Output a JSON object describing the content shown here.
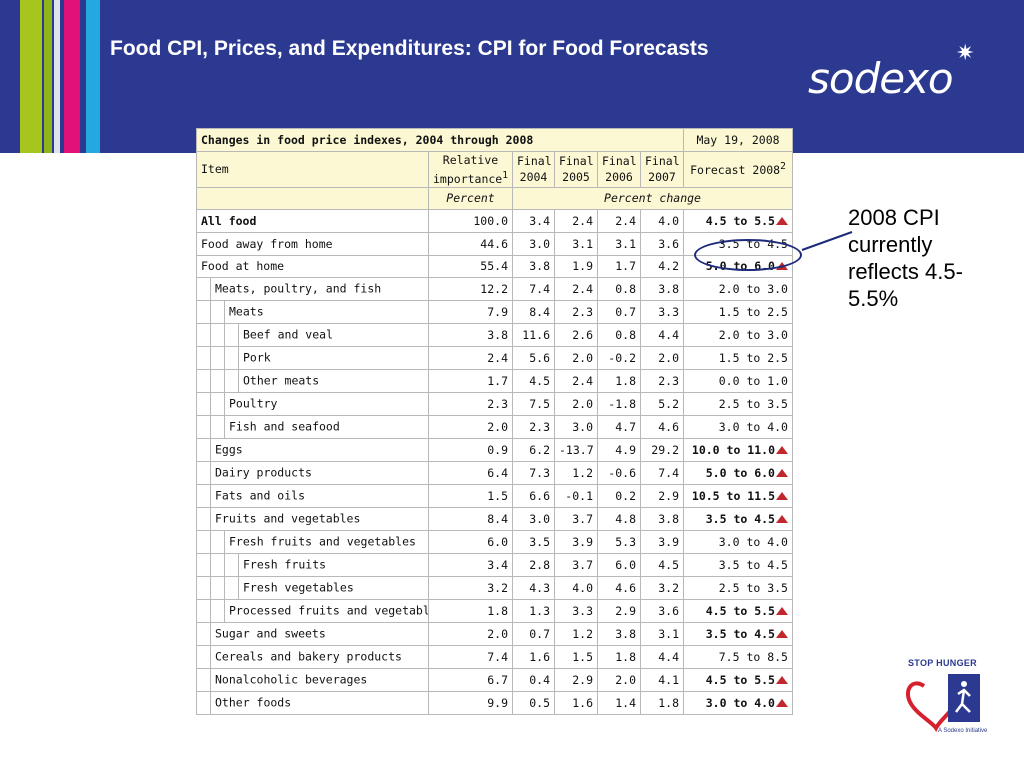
{
  "slide": {
    "title": "Food CPI, Prices, and Expenditures: CPI for Food Forecasts",
    "brand": "sodexo",
    "annotation": "2008 CPI currently reflects 4.5-5.5%",
    "badge_title": "STOP HUNGER",
    "badge_subtitle": "A Sodexo Initiative",
    "colors": {
      "header": "#2b3990",
      "arrow_up": "#c0282d"
    }
  },
  "table": {
    "caption": "Changes in food price indexes, 2004 through 2008",
    "date": "May 19, 2008",
    "headers": {
      "item": "Item",
      "relative": "Relative importance",
      "relative_sup": "1",
      "final2004": "Final 2004",
      "final2005": "Final 2005",
      "final2006": "Final 2006",
      "final2007": "Final 2007",
      "forecast": "Forecast 2008",
      "forecast_sup": "2"
    },
    "units": {
      "relative": "Percent",
      "change": "Percent change"
    },
    "rows": [
      {
        "item": "All food",
        "indent": 0,
        "bold": true,
        "rel": "100.0",
        "y2004": "3.4",
        "y2005": "2.4",
        "y2006": "2.4",
        "y2007": "4.0",
        "forecast": "4.5 to 5.5",
        "up": true
      },
      {
        "item": "Food away from home",
        "indent": 0,
        "bold": false,
        "rel": "44.6",
        "y2004": "3.0",
        "y2005": "3.1",
        "y2006": "3.1",
        "y2007": "3.6",
        "forecast": "3.5 to 4.5",
        "up": false
      },
      {
        "item": "Food at home",
        "indent": 0,
        "bold": false,
        "rel": "55.4",
        "y2004": "3.8",
        "y2005": "1.9",
        "y2006": "1.7",
        "y2007": "4.2",
        "forecast": "5.0 to 6.0",
        "up": true
      },
      {
        "item": "Meats, poultry, and fish",
        "indent": 1,
        "bold": false,
        "rel": "12.2",
        "y2004": "7.4",
        "y2005": "2.4",
        "y2006": "0.8",
        "y2007": "3.8",
        "forecast": "2.0 to 3.0",
        "up": false
      },
      {
        "item": "Meats",
        "indent": 2,
        "bold": false,
        "rel": "7.9",
        "y2004": "8.4",
        "y2005": "2.3",
        "y2006": "0.7",
        "y2007": "3.3",
        "forecast": "1.5 to 2.5",
        "up": false
      },
      {
        "item": "Beef and veal",
        "indent": 3,
        "bold": false,
        "rel": "3.8",
        "y2004": "11.6",
        "y2005": "2.6",
        "y2006": "0.8",
        "y2007": "4.4",
        "forecast": "2.0 to 3.0",
        "up": false
      },
      {
        "item": "Pork",
        "indent": 3,
        "bold": false,
        "rel": "2.4",
        "y2004": "5.6",
        "y2005": "2.0",
        "y2006": "-0.2",
        "y2007": "2.0",
        "forecast": "1.5 to 2.5",
        "up": false
      },
      {
        "item": "Other meats",
        "indent": 3,
        "bold": false,
        "rel": "1.7",
        "y2004": "4.5",
        "y2005": "2.4",
        "y2006": "1.8",
        "y2007": "2.3",
        "forecast": "0.0 to 1.0",
        "up": false
      },
      {
        "item": "Poultry",
        "indent": 2,
        "bold": false,
        "rel": "2.3",
        "y2004": "7.5",
        "y2005": "2.0",
        "y2006": "-1.8",
        "y2007": "5.2",
        "forecast": "2.5 to 3.5",
        "up": false
      },
      {
        "item": "Fish and seafood",
        "indent": 2,
        "bold": false,
        "rel": "2.0",
        "y2004": "2.3",
        "y2005": "3.0",
        "y2006": "4.7",
        "y2007": "4.6",
        "forecast": "3.0 to 4.0",
        "up": false
      },
      {
        "item": "Eggs",
        "indent": 1,
        "bold": false,
        "rel": "0.9",
        "y2004": "6.2",
        "y2005": "-13.7",
        "y2006": "4.9",
        "y2007": "29.2",
        "forecast": "10.0 to 11.0",
        "up": true
      },
      {
        "item": "Dairy products",
        "indent": 1,
        "bold": false,
        "rel": "6.4",
        "y2004": "7.3",
        "y2005": "1.2",
        "y2006": "-0.6",
        "y2007": "7.4",
        "forecast": "5.0 to 6.0",
        "up": true
      },
      {
        "item": "Fats and oils",
        "indent": 1,
        "bold": false,
        "rel": "1.5",
        "y2004": "6.6",
        "y2005": "-0.1",
        "y2006": "0.2",
        "y2007": "2.9",
        "forecast": "10.5 to 11.5",
        "up": true
      },
      {
        "item": "Fruits and vegetables",
        "indent": 1,
        "bold": false,
        "rel": "8.4",
        "y2004": "3.0",
        "y2005": "3.7",
        "y2006": "4.8",
        "y2007": "3.8",
        "forecast": "3.5 to 4.5",
        "up": true
      },
      {
        "item": "Fresh fruits and vegetables",
        "indent": 2,
        "bold": false,
        "rel": "6.0",
        "y2004": "3.5",
        "y2005": "3.9",
        "y2006": "5.3",
        "y2007": "3.9",
        "forecast": "3.0 to 4.0",
        "up": false
      },
      {
        "item": "Fresh fruits",
        "indent": 3,
        "bold": false,
        "rel": "3.4",
        "y2004": "2.8",
        "y2005": "3.7",
        "y2006": "6.0",
        "y2007": "4.5",
        "forecast": "3.5 to 4.5",
        "up": false
      },
      {
        "item": "Fresh vegetables",
        "indent": 3,
        "bold": false,
        "rel": "3.2",
        "y2004": "4.3",
        "y2005": "4.0",
        "y2006": "4.6",
        "y2007": "3.2",
        "forecast": "2.5 to 3.5",
        "up": false
      },
      {
        "item": "Processed fruits and vegetables",
        "indent": 2,
        "bold": false,
        "rel": "1.8",
        "y2004": "1.3",
        "y2005": "3.3",
        "y2006": "2.9",
        "y2007": "3.6",
        "forecast": "4.5 to 5.5",
        "up": true
      },
      {
        "item": "Sugar and sweets",
        "indent": 1,
        "bold": false,
        "rel": "2.0",
        "y2004": "0.7",
        "y2005": "1.2",
        "y2006": "3.8",
        "y2007": "3.1",
        "forecast": "3.5 to 4.5",
        "up": true
      },
      {
        "item": "Cereals and bakery products",
        "indent": 1,
        "bold": false,
        "rel": "7.4",
        "y2004": "1.6",
        "y2005": "1.5",
        "y2006": "1.8",
        "y2007": "4.4",
        "forecast": "7.5 to 8.5",
        "up": false
      },
      {
        "item": "Nonalcoholic beverages",
        "indent": 1,
        "bold": false,
        "rel": "6.7",
        "y2004": "0.4",
        "y2005": "2.9",
        "y2006": "2.0",
        "y2007": "4.1",
        "forecast": "4.5 to 5.5",
        "up": true
      },
      {
        "item": "Other foods",
        "indent": 1,
        "bold": false,
        "rel": "9.9",
        "y2004": "0.5",
        "y2005": "1.6",
        "y2006": "1.4",
        "y2007": "1.8",
        "forecast": "3.0 to 4.0",
        "up": true
      }
    ]
  }
}
